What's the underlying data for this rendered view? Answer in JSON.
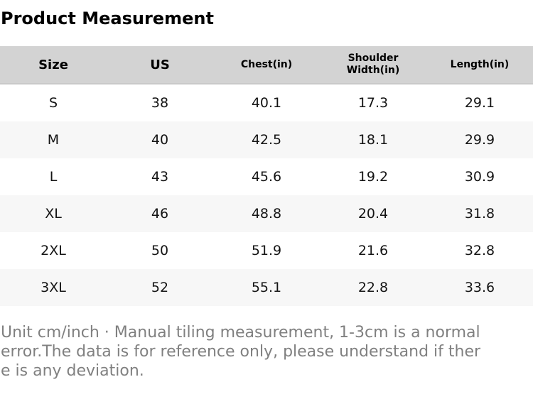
{
  "page": {
    "title": "Product Measurement"
  },
  "table": {
    "columns": [
      "Size",
      "US",
      "Chest(in)",
      "Shoulder Width(in)",
      "Length(in)"
    ],
    "rows": [
      [
        "S",
        "38",
        "40.1",
        "17.3",
        "29.1"
      ],
      [
        "M",
        "40",
        "42.5",
        "18.1",
        "29.9"
      ],
      [
        "L",
        "43",
        "45.6",
        "19.2",
        "30.9"
      ],
      [
        "XL",
        "46",
        "48.8",
        "20.4",
        "31.8"
      ],
      [
        "2XL",
        "50",
        "51.9",
        "21.6",
        "32.8"
      ],
      [
        "3XL",
        "52",
        "55.1",
        "22.8",
        "33.6"
      ]
    ]
  },
  "footer": {
    "full_text": "Unit cm/inch · Manual tiling measurement, 1-3cm is a normal error.The data is for reference only, please understand if there is any deviation.",
    "lines": [
      "Unit cm/inch · Manual tiling measurement, 1-3cm is a normal",
      "error.The data is for reference only, please understand if ther",
      "e is any deviation."
    ]
  },
  "colors": {
    "header_bg": "#d3d3d3",
    "row_alt_bg": "#f7f7f7",
    "footer_text": "#808080"
  }
}
